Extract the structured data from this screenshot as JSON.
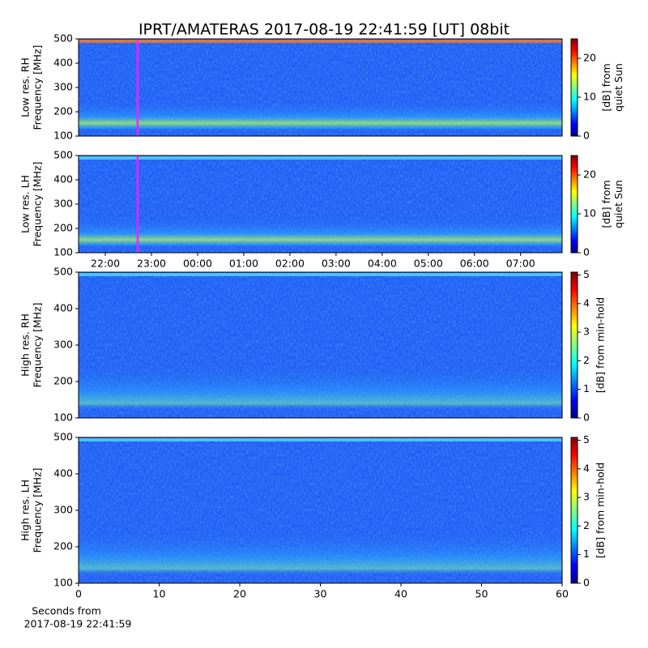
{
  "title": "IPRT/AMATERAS 2017-08-19 22:41:59 [UT]   08bit",
  "chart_data": [
    {
      "type": "heatmap",
      "ylabel": [
        "Low res. RH",
        "Frequency [MHz]"
      ],
      "ylim": [
        100,
        500
      ],
      "yticks": [
        100,
        200,
        300,
        400,
        500
      ],
      "xlim": [
        21.42,
        31.9
      ],
      "marker_x": 22.7,
      "colorbar": {
        "label": [
          "[dB] from",
          "quiet Sun"
        ],
        "lim": [
          0,
          25
        ],
        "ticks": [
          0,
          10,
          20
        ]
      }
    },
    {
      "type": "heatmap",
      "ylabel": [
        "Low res. LH",
        "Frequency [MHz]"
      ],
      "ylim": [
        100,
        500
      ],
      "yticks": [
        100,
        200,
        300,
        400,
        500
      ],
      "xlim": [
        21.42,
        31.9
      ],
      "marker_x": 22.7,
      "xticks": [
        {
          "value": 22,
          "label": "22:00"
        },
        {
          "value": 23,
          "label": "23:00"
        },
        {
          "value": 24,
          "label": "00:00"
        },
        {
          "value": 25,
          "label": "01:00"
        },
        {
          "value": 26,
          "label": "02:00"
        },
        {
          "value": 27,
          "label": "03:00"
        },
        {
          "value": 28,
          "label": "04:00"
        },
        {
          "value": 29,
          "label": "05:00"
        },
        {
          "value": 30,
          "label": "06:00"
        },
        {
          "value": 31,
          "label": "07:00"
        }
      ],
      "colorbar": {
        "label": [
          "[dB] from",
          "quiet Sun"
        ],
        "lim": [
          0,
          25
        ],
        "ticks": [
          0,
          10,
          20
        ]
      }
    },
    {
      "type": "heatmap",
      "ylabel": [
        "High res. RH",
        "Frequency [MHz]"
      ],
      "ylim": [
        100,
        500
      ],
      "yticks": [
        100,
        200,
        300,
        400,
        500
      ],
      "xlim": [
        0,
        60
      ],
      "colorbar": {
        "label": [
          "[dB] from min-hold"
        ],
        "lim": [
          0,
          5.1
        ],
        "ticks": [
          0,
          1,
          2,
          3,
          4,
          5
        ]
      }
    },
    {
      "type": "heatmap",
      "ylabel": [
        "High res. LH",
        "Frequency [MHz]"
      ],
      "ylim": [
        100,
        500
      ],
      "yticks": [
        100,
        200,
        300,
        400,
        500
      ],
      "xlim": [
        0,
        60
      ],
      "xticks": [
        0,
        10,
        20,
        30,
        40,
        50,
        60
      ],
      "xlabel": [
        "Seconds from",
        "2017-08-19 22:41:59"
      ],
      "colorbar": {
        "label": [
          "[dB] from min-hold"
        ],
        "lim": [
          0,
          5.1
        ],
        "ticks": [
          0,
          1,
          2,
          3,
          4,
          5
        ]
      }
    }
  ]
}
